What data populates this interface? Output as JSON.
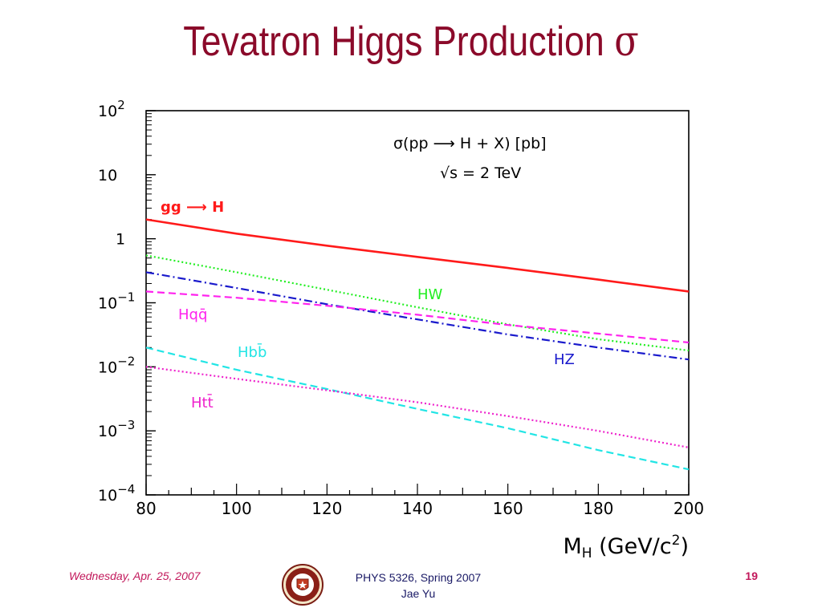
{
  "slide": {
    "title": "Tevatron Higgs Production",
    "title_symbol": "σ",
    "title_color": "#8B0A2A"
  },
  "footer": {
    "date": "Wednesday, Apr. 25, 2007",
    "course": "PHYS 5326, Spring 2007",
    "author": "Jae Yu",
    "page": "19",
    "logo": "university-seal-icon"
  },
  "chart_data": {
    "type": "line",
    "x_scale": "linear",
    "y_scale": "log",
    "xlim": [
      80,
      200
    ],
    "ylim": [
      0.0001,
      100
    ],
    "x_ticks": [
      "80",
      "100",
      "120",
      "140",
      "160",
      "180",
      "200"
    ],
    "y_ticks": [
      {
        "base": "10",
        "exp": "2"
      },
      {
        "base": "10",
        "exp": ""
      },
      {
        "base": "1",
        "exp": ""
      },
      {
        "base": "10",
        "exp": "−1"
      },
      {
        "base": "10",
        "exp": "−2"
      },
      {
        "base": "10",
        "exp": "−3"
      },
      {
        "base": "10",
        "exp": "−4"
      }
    ],
    "xlabel": "M",
    "xlabel_sub": "H",
    "xlabel_unit": "(GeV/c",
    "xlabel_unit_exp": "2",
    "xlabel_unit_close": ")",
    "annotation": {
      "line1": "σ(pp ⟶ H + X) [pb]",
      "line2": "√s = 2 TeV"
    },
    "legend": "inline labels",
    "series": [
      {
        "name": "gg ⟶ H",
        "color": "#ff1a1a",
        "style": "solid",
        "x": [
          80,
          100,
          120,
          140,
          160,
          180,
          200
        ],
        "y": [
          2.0,
          1.2,
          0.78,
          0.52,
          0.35,
          0.23,
          0.15
        ]
      },
      {
        "name": "HW",
        "color": "#22ee22",
        "style": "dotted",
        "x": [
          80,
          100,
          120,
          140,
          160,
          180,
          200
        ],
        "y": [
          0.55,
          0.3,
          0.16,
          0.085,
          0.046,
          0.027,
          0.018
        ]
      },
      {
        "name": "HZ",
        "color": "#1a1acc",
        "style": "dashdot",
        "x": [
          80,
          100,
          120,
          140,
          160,
          180,
          200
        ],
        "y": [
          0.3,
          0.17,
          0.095,
          0.055,
          0.032,
          0.02,
          0.013
        ]
      },
      {
        "name": "Hqq̄",
        "color": "#ff22ee",
        "style": "dashed",
        "x": [
          80,
          100,
          120,
          140,
          160,
          180,
          200
        ],
        "y": [
          0.15,
          0.12,
          0.09,
          0.065,
          0.045,
          0.033,
          0.024
        ]
      },
      {
        "name": "Hbb̄",
        "color": "#22e5e5",
        "style": "dashed",
        "x": [
          80,
          100,
          120,
          140,
          160,
          180,
          200
        ],
        "y": [
          0.02,
          0.009,
          0.0045,
          0.0022,
          0.0011,
          0.0005,
          0.00025
        ]
      },
      {
        "name": "Htt̄",
        "color": "#ee22cc",
        "style": "dotted",
        "x": [
          80,
          100,
          120,
          140,
          160,
          180,
          200
        ],
        "y": [
          0.01,
          0.0065,
          0.0043,
          0.0028,
          0.0017,
          0.001,
          0.00055
        ]
      }
    ]
  }
}
